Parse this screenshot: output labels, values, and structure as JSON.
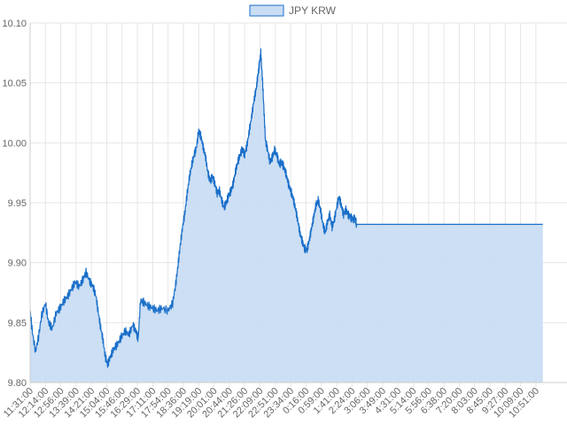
{
  "chart_data": {
    "type": "area",
    "title": "",
    "xlabel": "",
    "ylabel": "",
    "legend": {
      "position": "top",
      "entries": [
        "JPY KRW"
      ]
    },
    "grid": true,
    "ylim": [
      9.8,
      10.1
    ],
    "y_ticks": [
      "9.80",
      "9.85",
      "9.90",
      "9.95",
      "10.00",
      "10.05",
      "10.10"
    ],
    "x_ticks": [
      "11:31:00",
      "12:14:00",
      "12:56:00",
      "13:39:00",
      "14:21:00",
      "15:04:00",
      "15:46:00",
      "16:29:00",
      "17:11:00",
      "17:54:00",
      "18:36:00",
      "19:19:00",
      "20:01:00",
      "20:44:00",
      "21:26:00",
      "22:09:00",
      "22:51:00",
      "23:34:00",
      "0:16:00",
      "0:59:00",
      "1:41:00",
      "2:24:00",
      "3:06:00",
      "3:49:00",
      "4:31:00",
      "5:14:00",
      "5:56:00",
      "6:38:00",
      "7:20:00",
      "8:03:00",
      "8:45:00",
      "9:27:00",
      "10:09:00",
      "10:51:00"
    ],
    "series": [
      {
        "name": "JPY KRW",
        "color": "#1a6fc9",
        "fill": "#c9ddf3",
        "points": [
          [
            0,
            9.86
          ],
          [
            0.15,
            9.842
          ],
          [
            0.35,
            9.826
          ],
          [
            0.55,
            9.838
          ],
          [
            0.75,
            9.856
          ],
          [
            1.0,
            9.866
          ],
          [
            1.2,
            9.85
          ],
          [
            1.45,
            9.845
          ],
          [
            1.7,
            9.858
          ],
          [
            1.95,
            9.862
          ],
          [
            2.2,
            9.868
          ],
          [
            2.45,
            9.872
          ],
          [
            2.7,
            9.878
          ],
          [
            2.95,
            9.884
          ],
          [
            3.2,
            9.88
          ],
          [
            3.45,
            9.886
          ],
          [
            3.65,
            9.892
          ],
          [
            3.9,
            9.884
          ],
          [
            4.1,
            9.88
          ],
          [
            4.3,
            9.872
          ],
          [
            4.45,
            9.858
          ],
          [
            4.6,
            9.846
          ],
          [
            4.75,
            9.836
          ],
          [
            4.9,
            9.822
          ],
          [
            5.05,
            9.815
          ],
          [
            5.25,
            9.822
          ],
          [
            5.45,
            9.828
          ],
          [
            5.7,
            9.832
          ],
          [
            5.95,
            9.838
          ],
          [
            6.2,
            9.843
          ],
          [
            6.45,
            9.84
          ],
          [
            6.7,
            9.848
          ],
          [
            6.9,
            9.843
          ],
          [
            7.05,
            9.836
          ],
          [
            7.2,
            9.868
          ],
          [
            7.4,
            9.867
          ],
          [
            7.7,
            9.864
          ],
          [
            8.0,
            9.862
          ],
          [
            8.3,
            9.86
          ],
          [
            8.6,
            9.862
          ],
          [
            9.0,
            9.86
          ],
          [
            9.3,
            9.866
          ],
          [
            9.5,
            9.882
          ],
          [
            9.65,
            9.898
          ],
          [
            9.8,
            9.915
          ],
          [
            9.95,
            9.93
          ],
          [
            10.1,
            9.942
          ],
          [
            10.25,
            9.958
          ],
          [
            10.4,
            9.972
          ],
          [
            10.55,
            9.982
          ],
          [
            10.7,
            9.99
          ],
          [
            10.85,
            9.996
          ],
          [
            11.0,
            10.01
          ],
          [
            11.15,
            10.005
          ],
          [
            11.3,
            9.996
          ],
          [
            11.45,
            9.988
          ],
          [
            11.6,
            9.975
          ],
          [
            11.75,
            9.968
          ],
          [
            11.9,
            9.972
          ],
          [
            12.05,
            9.966
          ],
          [
            12.2,
            9.958
          ],
          [
            12.35,
            9.96
          ],
          [
            12.5,
            9.952
          ],
          [
            12.65,
            9.946
          ],
          [
            12.8,
            9.95
          ],
          [
            12.95,
            9.956
          ],
          [
            13.1,
            9.96
          ],
          [
            13.25,
            9.966
          ],
          [
            13.4,
            9.976
          ],
          [
            13.55,
            9.984
          ],
          [
            13.7,
            9.99
          ],
          [
            13.85,
            9.995
          ],
          [
            14.0,
            9.99
          ],
          [
            14.15,
            9.998
          ],
          [
            14.3,
            10.01
          ],
          [
            14.45,
            10.022
          ],
          [
            14.6,
            10.035
          ],
          [
            14.75,
            10.045
          ],
          [
            14.85,
            10.055
          ],
          [
            14.95,
            10.065
          ],
          [
            15.05,
            10.075
          ],
          [
            15.15,
            10.055
          ],
          [
            15.25,
            10.03
          ],
          [
            15.35,
            10.002
          ],
          [
            15.5,
            9.994
          ],
          [
            15.65,
            9.984
          ],
          [
            15.8,
            9.988
          ],
          [
            15.95,
            9.994
          ],
          [
            16.1,
            9.99
          ],
          [
            16.25,
            9.982
          ],
          [
            16.4,
            9.984
          ],
          [
            16.55,
            9.98
          ],
          [
            16.7,
            9.974
          ],
          [
            16.85,
            9.966
          ],
          [
            17.0,
            9.96
          ],
          [
            17.15,
            9.954
          ],
          [
            17.3,
            9.946
          ],
          [
            17.45,
            9.936
          ],
          [
            17.6,
            9.925
          ],
          [
            17.75,
            9.918
          ],
          [
            17.9,
            9.912
          ],
          [
            18.05,
            9.91
          ],
          [
            18.2,
            9.918
          ],
          [
            18.35,
            9.928
          ],
          [
            18.5,
            9.938
          ],
          [
            18.65,
            9.948
          ],
          [
            18.8,
            9.952
          ],
          [
            18.95,
            9.944
          ],
          [
            19.1,
            9.932
          ],
          [
            19.25,
            9.925
          ],
          [
            19.4,
            9.934
          ],
          [
            19.55,
            9.94
          ],
          [
            19.7,
            9.93
          ],
          [
            19.85,
            9.936
          ],
          [
            20.0,
            9.946
          ],
          [
            20.15,
            9.955
          ],
          [
            20.3,
            9.948
          ],
          [
            20.45,
            9.94
          ],
          [
            20.6,
            9.944
          ],
          [
            20.75,
            9.94
          ],
          [
            20.9,
            9.938
          ],
          [
            21.05,
            9.936
          ],
          [
            21.2,
            9.937
          ],
          [
            21.3,
            9.932
          ],
          [
            21.6,
            9.932
          ],
          [
            22.0,
            9.932
          ],
          [
            23.0,
            9.932
          ],
          [
            24.0,
            9.932
          ],
          [
            25.0,
            9.932
          ],
          [
            26.0,
            9.932
          ],
          [
            27.0,
            9.932
          ],
          [
            28.0,
            9.932
          ],
          [
            29.0,
            9.932
          ],
          [
            30.0,
            9.932
          ],
          [
            31.0,
            9.932
          ],
          [
            32.0,
            9.932
          ],
          [
            33.0,
            9.932
          ],
          [
            33.45,
            9.932
          ]
        ]
      }
    ]
  }
}
